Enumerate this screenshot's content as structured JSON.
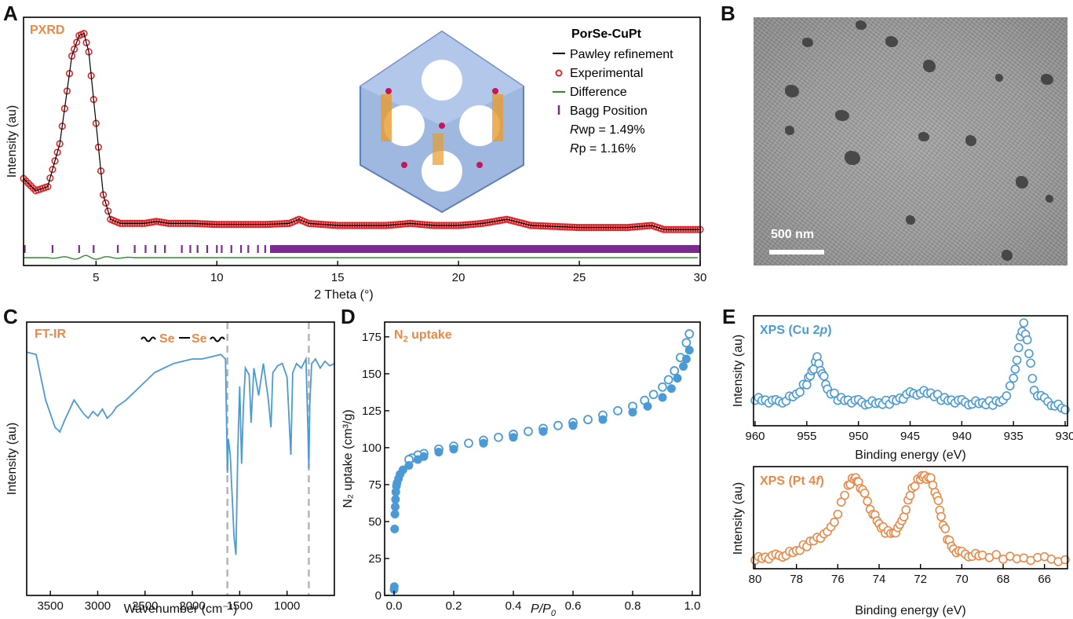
{
  "panel_labels": {
    "a": "A",
    "b": "B",
    "c": "C",
    "d": "D",
    "e": "E"
  },
  "colors": {
    "red": "#e0262a",
    "purple": "#7b2b8e",
    "green": "#2e8b2e",
    "blue": "#4b9ad6",
    "orange": "#e8894a"
  },
  "chart_data": [
    {
      "id": "pxrd",
      "type": "line",
      "tag": "PXRD",
      "xlabel": "2 Theta (°)",
      "ylabel": "Intensity (au)",
      "xlim": [
        2,
        30
      ],
      "xticks": [
        "5",
        "10",
        "15",
        "20",
        "25",
        "30"
      ],
      "legend": {
        "title": "PorSe-CuPt",
        "items": [
          "Pawley refinement",
          "Experimental",
          "Difference",
          "Bagg Position"
        ],
        "rwp_italic": "R",
        "rwp_rest": "wp = 1.49%",
        "rp_italic": "R",
        "rp_rest": "p = 1.16%"
      },
      "series": [
        {
          "name": "Experimental",
          "x": [
            2,
            2.5,
            3,
            3.5,
            4,
            4.3,
            4.5,
            4.7,
            5,
            5.3,
            5.6,
            6,
            7,
            7.5,
            8,
            9,
            10,
            11,
            12,
            13,
            13.4,
            13.8,
            15,
            17,
            18,
            19,
            20,
            21,
            22,
            23,
            25,
            27,
            28,
            28.5,
            30
          ],
          "y": [
            0.28,
            0.22,
            0.24,
            0.45,
            0.88,
            0.98,
            0.99,
            0.9,
            0.55,
            0.2,
            0.08,
            0.06,
            0.06,
            0.07,
            0.06,
            0.06,
            0.055,
            0.055,
            0.055,
            0.06,
            0.08,
            0.06,
            0.05,
            0.05,
            0.06,
            0.05,
            0.05,
            0.06,
            0.08,
            0.05,
            0.04,
            0.04,
            0.05,
            0.03,
            0.03
          ]
        }
      ],
      "bragg_positions": [
        2.05,
        3.2,
        4.3,
        4.9,
        5.9,
        6.6,
        7.05,
        7.45,
        7.85,
        8.55,
        8.9,
        9.2,
        9.6,
        10.0,
        10.2,
        10.6,
        11.0,
        11.3,
        11.7,
        12.0,
        12.3,
        12.7,
        13.0,
        13.3,
        13.6,
        13.9,
        14.1,
        14.5,
        14.8,
        15.1,
        15.4,
        15.7,
        16.0,
        16.3,
        16.6,
        16.9,
        17.2,
        17.5,
        17.8,
        18.1,
        18.4,
        18.7,
        19.0,
        19.3,
        19.6,
        19.9,
        20.2,
        20.5,
        20.8,
        21.1,
        21.4,
        21.7,
        22.0,
        22.3,
        22.6,
        22.9,
        23.2,
        23.5,
        23.8,
        24.1,
        24.4,
        24.7,
        25.0,
        25.3,
        25.6,
        25.9,
        26.2,
        26.5,
        26.8,
        27.1,
        27.4,
        27.7,
        28.0,
        28.3,
        28.6,
        28.9,
        29.2,
        29.5,
        29.8
      ]
    },
    {
      "id": "ftir",
      "type": "line",
      "tag": "FT-IR",
      "annotation": "Se—Se",
      "annotation_left": "Se",
      "annotation_right": "Se",
      "xlabel": "Wavenumber (cm⁻¹)",
      "ylabel": "Intensity (au)",
      "xlim": [
        3750,
        500
      ],
      "xticks": [
        "3500",
        "3000",
        "2500",
        "2000",
        "1500",
        "1000"
      ],
      "dashed_lines": [
        1630,
        770
      ],
      "series": [
        {
          "name": "FT-IR",
          "x": [
            3750,
            3650,
            3550,
            3450,
            3400,
            3350,
            3250,
            3150,
            3100,
            3050,
            3000,
            2950,
            2900,
            2850,
            2800,
            2700,
            2600,
            2500,
            2400,
            2300,
            2200,
            2100,
            2000,
            1900,
            1800,
            1700,
            1650,
            1630,
            1620,
            1600,
            1580,
            1560,
            1540,
            1520,
            1500,
            1480,
            1460,
            1440,
            1400,
            1380,
            1350,
            1300,
            1250,
            1200,
            1170,
            1150,
            1100,
            1050,
            1000,
            960,
            940,
            900,
            850,
            800,
            780,
            770,
            760,
            740,
            700,
            650,
            600,
            550,
            500
          ],
          "y": [
            0.93,
            0.92,
            0.72,
            0.6,
            0.58,
            0.63,
            0.72,
            0.66,
            0.64,
            0.67,
            0.65,
            0.68,
            0.64,
            0.66,
            0.69,
            0.72,
            0.76,
            0.8,
            0.84,
            0.86,
            0.88,
            0.89,
            0.9,
            0.9,
            0.91,
            0.92,
            0.9,
            0.4,
            0.55,
            0.48,
            0.3,
            0.12,
            0.04,
            0.5,
            0.78,
            0.44,
            0.7,
            0.86,
            0.83,
            0.62,
            0.86,
            0.74,
            0.88,
            0.73,
            0.6,
            0.84,
            0.87,
            0.88,
            0.82,
            0.48,
            0.84,
            0.88,
            0.86,
            0.9,
            0.6,
            0.42,
            0.7,
            0.88,
            0.9,
            0.86,
            0.89,
            0.87,
            0.88
          ]
        }
      ]
    },
    {
      "id": "n2",
      "type": "scatter",
      "tag_main": "N",
      "tag_sub": "2",
      "tag_rest": " uptake",
      "xlabel_italic": "P/P",
      "xlabel_sub": "0",
      "ylabel": "N₂ uptake (cm³/g)",
      "xlim": [
        0,
        1
      ],
      "ylim": [
        0,
        185
      ],
      "xticks": [
        "0.0",
        "0.2",
        "0.4",
        "0.6",
        "0.8",
        "1.0"
      ],
      "yticks": [
        "0",
        "25",
        "50",
        "75",
        "100",
        "125",
        "150",
        "175"
      ],
      "series": [
        {
          "name": "adsorption",
          "x": [
            0.0,
            0.001,
            0.002,
            0.003,
            0.004,
            0.005,
            0.006,
            0.008,
            0.01,
            0.015,
            0.02,
            0.03,
            0.05,
            0.08,
            0.1,
            0.15,
            0.2,
            0.3,
            0.4,
            0.5,
            0.6,
            0.7,
            0.8,
            0.85,
            0.9,
            0.93,
            0.95,
            0.97,
            0.98,
            0.99
          ],
          "y": [
            4,
            6,
            45,
            55,
            60,
            65,
            70,
            74,
            76,
            79,
            82,
            85,
            88,
            92,
            94,
            97,
            99,
            103,
            107,
            111,
            115,
            119,
            124,
            128,
            134,
            140,
            147,
            155,
            160,
            166
          ]
        },
        {
          "name": "desorption",
          "x": [
            0.99,
            0.98,
            0.96,
            0.94,
            0.92,
            0.9,
            0.87,
            0.84,
            0.8,
            0.75,
            0.7,
            0.65,
            0.6,
            0.55,
            0.5,
            0.45,
            0.4,
            0.35,
            0.3,
            0.25,
            0.2,
            0.15,
            0.1,
            0.08,
            0.06,
            0.05
          ],
          "y": [
            177,
            171,
            161,
            152,
            146,
            141,
            136,
            132,
            128,
            125,
            122,
            119,
            117,
            115,
            113,
            111,
            109,
            107,
            105,
            103,
            101,
            99,
            96,
            95,
            93,
            92
          ]
        }
      ]
    },
    {
      "id": "xps_cu",
      "type": "scatter",
      "tag_prefix": "XPS (Cu 2",
      "tag_italic": "p",
      "tag_suffix": ")",
      "xlabel": "Binding energy (eV)",
      "ylabel": "Intensity (au)",
      "xlim": [
        960,
        930
      ],
      "xticks": [
        "960",
        "955",
        "950",
        "945",
        "940",
        "935",
        "930"
      ],
      "series": [
        {
          "name": "Cu 2p",
          "x": [
            960,
            959,
            958,
            957,
            956,
            955,
            954.5,
            954,
            953.5,
            953,
            952,
            951,
            950,
            949,
            948,
            947,
            946,
            945,
            944,
            943,
            942,
            941,
            940,
            939,
            938,
            937,
            936,
            935,
            934.5,
            934,
            933.5,
            933,
            932,
            931,
            930
          ],
          "y": [
            0.22,
            0.2,
            0.18,
            0.2,
            0.25,
            0.38,
            0.5,
            0.62,
            0.48,
            0.3,
            0.22,
            0.2,
            0.18,
            0.17,
            0.16,
            0.18,
            0.22,
            0.26,
            0.28,
            0.26,
            0.22,
            0.2,
            0.18,
            0.17,
            0.16,
            0.17,
            0.2,
            0.4,
            0.75,
            0.98,
            0.7,
            0.3,
            0.2,
            0.15,
            0.1
          ]
        }
      ]
    },
    {
      "id": "xps_pt",
      "type": "scatter",
      "tag_prefix": "XPS (Pt 4",
      "tag_italic": "f",
      "tag_suffix": ")",
      "xlabel": "Binding energy (eV)",
      "ylabel": "Intensity (au)",
      "xlim": [
        80,
        65
      ],
      "xticks": [
        "80",
        "78",
        "76",
        "74",
        "72",
        "70",
        "68",
        "66"
      ],
      "series": [
        {
          "name": "Pt 4f",
          "x": [
            80,
            79.5,
            79,
            78.5,
            78,
            77.5,
            77,
            76.5,
            76,
            75.5,
            75.2,
            75,
            74.7,
            74.3,
            74,
            73.7,
            73.3,
            73,
            72.7,
            72.4,
            72,
            71.8,
            71.5,
            71.2,
            71,
            70.7,
            70.4,
            70,
            69.5,
            69,
            68,
            67,
            66,
            65
          ],
          "y": [
            0.05,
            0.06,
            0.07,
            0.09,
            0.12,
            0.2,
            0.28,
            0.32,
            0.55,
            0.85,
            0.95,
            0.9,
            0.75,
            0.55,
            0.42,
            0.35,
            0.33,
            0.4,
            0.6,
            0.82,
            0.95,
            0.97,
            0.92,
            0.75,
            0.5,
            0.28,
            0.15,
            0.1,
            0.08,
            0.07,
            0.06,
            0.05,
            0.04,
            0.03
          ]
        }
      ]
    }
  ],
  "tem": {
    "scalebar": "500 nm"
  }
}
